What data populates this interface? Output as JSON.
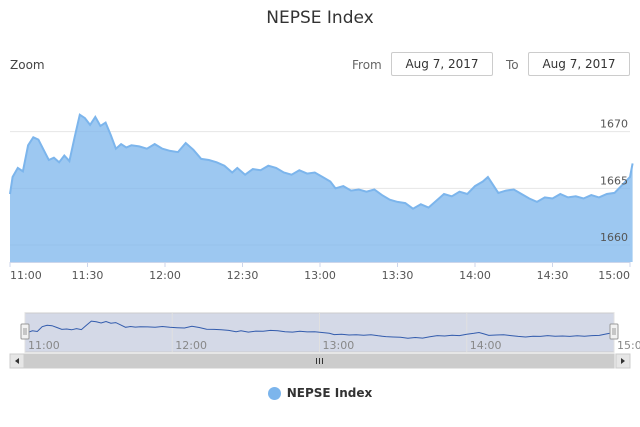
{
  "title": "NEPSE Index",
  "zoom_label": "Zoom",
  "range": {
    "from_label": "From",
    "from_value": "Aug 7, 2017",
    "to_label": "To",
    "to_value": "Aug 7, 2017"
  },
  "legend": {
    "label": "NEPSE Index"
  },
  "colors": {
    "series": "#7cb5ec",
    "navigator": "#335cad",
    "mask": "#c6ccdf"
  },
  "chart_data": {
    "type": "area",
    "title": "NEPSE Index",
    "x_axis": {
      "tick_labels": [
        "11:00",
        "11:30",
        "12:00",
        "12:30",
        "13:00",
        "13:30",
        "14:00",
        "14:30",
        "15:00"
      ],
      "range": [
        "11:00",
        "15:00"
      ]
    },
    "y_axis": {
      "tick_labels": [
        "1660",
        "1665",
        "1670"
      ],
      "range": [
        1658.5,
        1673.5
      ],
      "ticks": [
        1660,
        1665,
        1670
      ]
    },
    "grid": true,
    "legend_position": "bottom-center",
    "series": [
      {
        "name": "NEPSE Index",
        "points": [
          [
            "11:00",
            1664.5
          ],
          [
            "11:01",
            1666.0
          ],
          [
            "11:03",
            1666.8
          ],
          [
            "11:05",
            1666.5
          ],
          [
            "11:07",
            1668.8
          ],
          [
            "11:09",
            1669.5
          ],
          [
            "11:11",
            1669.3
          ],
          [
            "11:13",
            1668.4
          ],
          [
            "11:15",
            1667.5
          ],
          [
            "11:17",
            1667.7
          ],
          [
            "11:19",
            1667.3
          ],
          [
            "11:21",
            1667.9
          ],
          [
            "11:23",
            1667.4
          ],
          [
            "11:25",
            1669.5
          ],
          [
            "11:27",
            1671.5
          ],
          [
            "11:29",
            1671.2
          ],
          [
            "11:31",
            1670.6
          ],
          [
            "11:33",
            1671.3
          ],
          [
            "11:35",
            1670.5
          ],
          [
            "11:37",
            1670.8
          ],
          [
            "11:39",
            1669.7
          ],
          [
            "11:41",
            1668.5
          ],
          [
            "11:43",
            1668.9
          ],
          [
            "11:45",
            1668.6
          ],
          [
            "11:47",
            1668.8
          ],
          [
            "11:50",
            1668.7
          ],
          [
            "11:53",
            1668.5
          ],
          [
            "11:56",
            1668.9
          ],
          [
            "11:59",
            1668.5
          ],
          [
            "12:02",
            1668.3
          ],
          [
            "12:05",
            1668.2
          ],
          [
            "12:08",
            1669.0
          ],
          [
            "12:11",
            1668.4
          ],
          [
            "12:14",
            1667.6
          ],
          [
            "12:17",
            1667.5
          ],
          [
            "12:20",
            1667.3
          ],
          [
            "12:23",
            1667.0
          ],
          [
            "12:26",
            1666.4
          ],
          [
            "12:28",
            1666.8
          ],
          [
            "12:31",
            1666.2
          ],
          [
            "12:34",
            1666.7
          ],
          [
            "12:37",
            1666.6
          ],
          [
            "12:40",
            1667.0
          ],
          [
            "12:43",
            1666.8
          ],
          [
            "12:46",
            1666.4
          ],
          [
            "12:49",
            1666.2
          ],
          [
            "12:52",
            1666.6
          ],
          [
            "12:55",
            1666.3
          ],
          [
            "12:58",
            1666.4
          ],
          [
            "13:01",
            1666.0
          ],
          [
            "13:04",
            1665.6
          ],
          [
            "13:06",
            1665.0
          ],
          [
            "13:09",
            1665.2
          ],
          [
            "13:12",
            1664.8
          ],
          [
            "13:15",
            1664.9
          ],
          [
            "13:18",
            1664.7
          ],
          [
            "13:21",
            1664.9
          ],
          [
            "13:24",
            1664.4
          ],
          [
            "13:27",
            1664.0
          ],
          [
            "13:30",
            1663.8
          ],
          [
            "13:33",
            1663.7
          ],
          [
            "13:36",
            1663.2
          ],
          [
            "13:39",
            1663.6
          ],
          [
            "13:42",
            1663.3
          ],
          [
            "13:45",
            1663.9
          ],
          [
            "13:48",
            1664.5
          ],
          [
            "13:51",
            1664.3
          ],
          [
            "13:54",
            1664.7
          ],
          [
            "13:57",
            1664.5
          ],
          [
            "14:00",
            1665.2
          ],
          [
            "14:03",
            1665.6
          ],
          [
            "14:05",
            1666.0
          ],
          [
            "14:07",
            1665.3
          ],
          [
            "14:09",
            1664.6
          ],
          [
            "14:12",
            1664.8
          ],
          [
            "14:15",
            1664.9
          ],
          [
            "14:18",
            1664.5
          ],
          [
            "14:21",
            1664.1
          ],
          [
            "14:24",
            1663.8
          ],
          [
            "14:27",
            1664.2
          ],
          [
            "14:30",
            1664.1
          ],
          [
            "14:33",
            1664.5
          ],
          [
            "14:36",
            1664.2
          ],
          [
            "14:39",
            1664.3
          ],
          [
            "14:42",
            1664.1
          ],
          [
            "14:45",
            1664.4
          ],
          [
            "14:48",
            1664.2
          ],
          [
            "14:51",
            1664.5
          ],
          [
            "14:54",
            1664.6
          ],
          [
            "14:57",
            1665.3
          ],
          [
            "15:00",
            1666.0
          ],
          [
            "15:01",
            1667.2
          ]
        ]
      }
    ]
  }
}
